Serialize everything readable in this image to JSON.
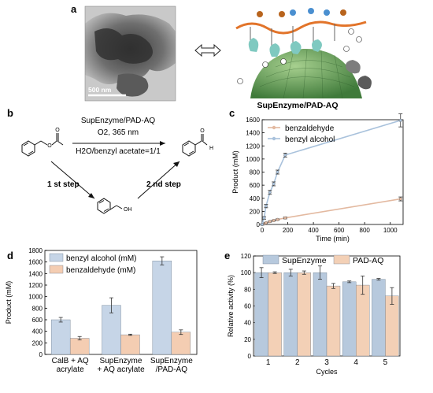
{
  "panels": {
    "a": {
      "letter": "a",
      "scale_bar": "500 nm",
      "illustration_title": "SupEnzyme/PAD-AQ"
    },
    "b": {
      "letter": "b",
      "catalyst": "SupEnzyme/PAD-AQ",
      "conditions": "O2, 365 nm",
      "solvent": "H2O/benzyl acetate=1/1",
      "step1": "1 st step",
      "step2": "2 nd step",
      "oh_label": "OH",
      "o_label": "O",
      "h_label": "H"
    },
    "c": {
      "letter": "c"
    },
    "d": {
      "letter": "d"
    },
    "e": {
      "letter": "e"
    }
  },
  "chart_data": [
    {
      "id": "c",
      "type": "line",
      "xlabel": "Time (min)",
      "ylabel": "Product (mM)",
      "xlim": [
        0,
        1100
      ],
      "ylim": [
        0,
        1600
      ],
      "xticks": [
        "0",
        "200",
        "400",
        "600",
        "800",
        "1000"
      ],
      "yticks": [
        "0",
        "200",
        "400",
        "600",
        "800",
        "1000",
        "1200",
        "1400",
        "1600"
      ],
      "legend_position": "top-left",
      "series": [
        {
          "name": "benzaldehyde",
          "color": "#e3b9a0",
          "x": [
            0,
            15,
            30,
            60,
            90,
            120,
            180,
            1080
          ],
          "y": [
            0,
            10,
            25,
            45,
            60,
            75,
            100,
            390
          ],
          "err": [
            5,
            8,
            8,
            10,
            10,
            10,
            15,
            30
          ]
        },
        {
          "name": "benzyl alcohol",
          "color": "#a9c2dc",
          "x": [
            0,
            15,
            30,
            60,
            90,
            120,
            180,
            1080
          ],
          "y": [
            0,
            100,
            280,
            490,
            620,
            800,
            1060,
            1590
          ],
          "err": [
            10,
            20,
            25,
            30,
            30,
            30,
            30,
            100
          ]
        }
      ]
    },
    {
      "id": "d",
      "type": "bar",
      "ylabel": "Product (mM)",
      "ylim": [
        0,
        1800
      ],
      "yticks": [
        "0",
        "200",
        "400",
        "600",
        "800",
        "1000",
        "1200",
        "1400",
        "1600",
        "1800"
      ],
      "categories": [
        [
          "CalB + AQ",
          "acrylate"
        ],
        [
          "SupEnzyme",
          "+ AQ acrylate"
        ],
        [
          "SupEnzyme",
          "/PAD-AQ"
        ]
      ],
      "legend_position": "top-left",
      "series": [
        {
          "name": "benzyl alcohol (mM)",
          "color": "#c6d5e7",
          "values": [
            600,
            850,
            1620
          ],
          "err": [
            40,
            130,
            70
          ]
        },
        {
          "name": "benzaldehyde (mM)",
          "color": "#f4cdb2",
          "values": [
            280,
            340,
            385
          ],
          "err": [
            30,
            10,
            40
          ]
        }
      ]
    },
    {
      "id": "e",
      "type": "bar",
      "xlabel": "Cycles",
      "ylabel": "Relative activity (%)",
      "ylim": [
        0,
        120
      ],
      "yticks": [
        "0",
        "20",
        "40",
        "60",
        "80",
        "100",
        "120"
      ],
      "categories": [
        "1",
        "2",
        "3",
        "4",
        "5"
      ],
      "legend_position": "top",
      "series": [
        {
          "name": "SupEnzyme",
          "color": "#b7c9dd",
          "values": [
            100,
            100,
            100,
            89,
            92
          ],
          "err": [
            6,
            4,
            8,
            1,
            1
          ]
        },
        {
          "name": "PAD-AQ",
          "color": "#f3d0b6",
          "values": [
            100,
            100,
            84,
            85,
            72
          ],
          "err": [
            1,
            2,
            3,
            11,
            10
          ]
        }
      ]
    }
  ]
}
